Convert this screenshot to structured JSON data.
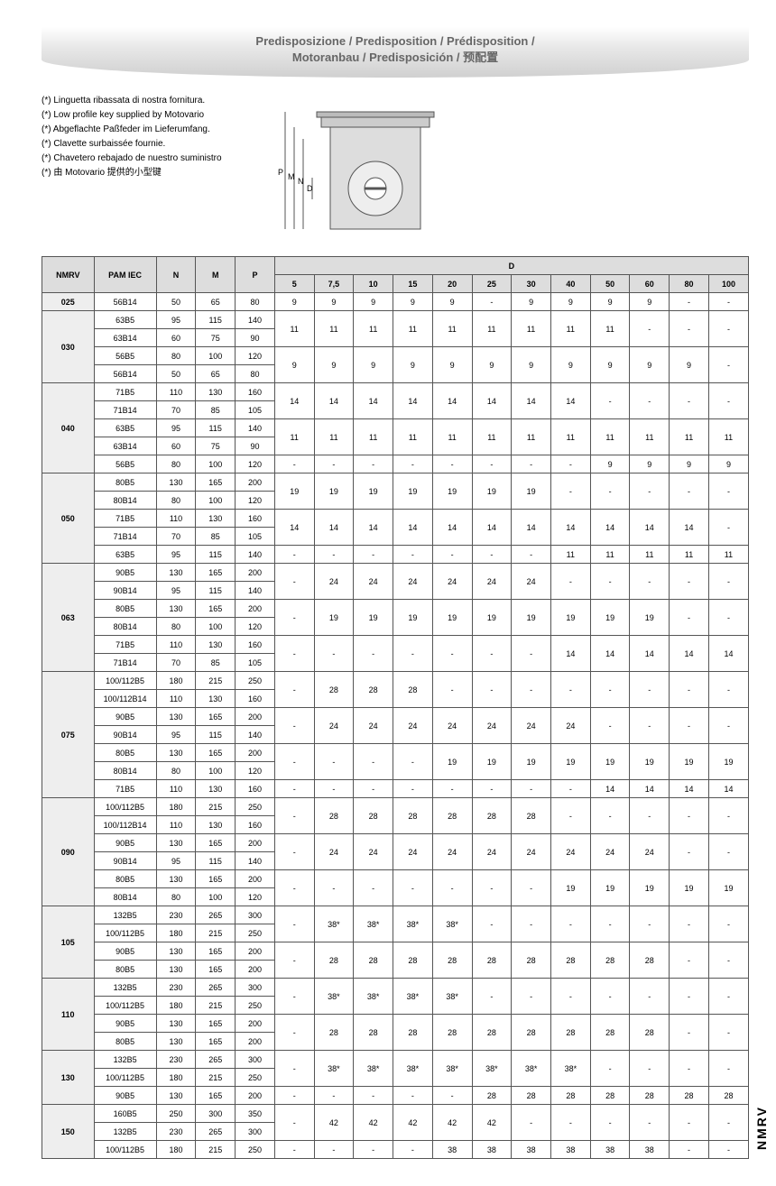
{
  "title_line1": "Predisposizione / Predisposition / Prédisposition /",
  "title_line2": "Motoranbau / Predisposición / 预配置",
  "notes": [
    "(*) Linguetta ribassata di nostra fornitura.",
    "(*) Low profile key supplied by Motovario",
    "(*) Abgeflachte Paßfeder im Lieferumfang.",
    "(*) Clavette surbaissée fournie.",
    "(*) Chavetero rebajado de nuestro suministro",
    "(*) 由 Motovario 提供的小型键"
  ],
  "side_label": "NMRV",
  "headers": {
    "nmrv": "NMRV",
    "pam": "PAM IEC",
    "n": "N",
    "m": "M",
    "p": "P",
    "d": "D",
    "d_cols": [
      "5",
      "7,5",
      "10",
      "15",
      "20",
      "25",
      "30",
      "40",
      "50",
      "60",
      "80",
      "100"
    ]
  },
  "groups": [
    {
      "nmrv": "025",
      "rows": [
        {
          "pam": "56B14",
          "n": "50",
          "m": "65",
          "p": "80"
        }
      ],
      "dvals": [
        [
          "9",
          "9",
          "9",
          "9",
          "9",
          "-",
          "9",
          "9",
          "9",
          "9",
          "-",
          "-"
        ]
      ]
    },
    {
      "nmrv": "030",
      "rows": [
        {
          "pam": "63B5",
          "n": "95",
          "m": "115",
          "p": "140"
        },
        {
          "pam": "63B14",
          "n": "60",
          "m": "75",
          "p": "90"
        },
        {
          "pam": "56B5",
          "n": "80",
          "m": "100",
          "p": "120"
        },
        {
          "pam": "56B14",
          "n": "50",
          "m": "65",
          "p": "80"
        }
      ],
      "dvals": [
        [
          "11",
          "11",
          "11",
          "11",
          "11",
          "11",
          "11",
          "11",
          "11",
          "-",
          "-",
          "-"
        ],
        [
          "9",
          "9",
          "9",
          "9",
          "9",
          "9",
          "9",
          "9",
          "9",
          "9",
          "9",
          "-"
        ]
      ]
    },
    {
      "nmrv": "040",
      "rows": [
        {
          "pam": "71B5",
          "n": "110",
          "m": "130",
          "p": "160"
        },
        {
          "pam": "71B14",
          "n": "70",
          "m": "85",
          "p": "105"
        },
        {
          "pam": "63B5",
          "n": "95",
          "m": "115",
          "p": "140"
        },
        {
          "pam": "63B14",
          "n": "60",
          "m": "75",
          "p": "90"
        },
        {
          "pam": "56B5",
          "n": "80",
          "m": "100",
          "p": "120"
        }
      ],
      "dvals": [
        [
          "14",
          "14",
          "14",
          "14",
          "14",
          "14",
          "14",
          "14",
          "-",
          "-",
          "-",
          "-"
        ],
        [
          "11",
          "11",
          "11",
          "11",
          "11",
          "11",
          "11",
          "11",
          "11",
          "11",
          "11",
          "11"
        ],
        [
          "-",
          "-",
          "-",
          "-",
          "-",
          "-",
          "-",
          "-",
          "9",
          "9",
          "9",
          "9"
        ]
      ]
    },
    {
      "nmrv": "050",
      "rows": [
        {
          "pam": "80B5",
          "n": "130",
          "m": "165",
          "p": "200"
        },
        {
          "pam": "80B14",
          "n": "80",
          "m": "100",
          "p": "120"
        },
        {
          "pam": "71B5",
          "n": "110",
          "m": "130",
          "p": "160"
        },
        {
          "pam": "71B14",
          "n": "70",
          "m": "85",
          "p": "105"
        },
        {
          "pam": "63B5",
          "n": "95",
          "m": "115",
          "p": "140"
        }
      ],
      "dvals": [
        [
          "19",
          "19",
          "19",
          "19",
          "19",
          "19",
          "19",
          "-",
          "-",
          "-",
          "-",
          "-"
        ],
        [
          "14",
          "14",
          "14",
          "14",
          "14",
          "14",
          "14",
          "14",
          "14",
          "14",
          "14",
          "-"
        ],
        [
          "-",
          "-",
          "-",
          "-",
          "-",
          "-",
          "-",
          "11",
          "11",
          "11",
          "11",
          "11"
        ]
      ]
    },
    {
      "nmrv": "063",
      "rows": [
        {
          "pam": "90B5",
          "n": "130",
          "m": "165",
          "p": "200"
        },
        {
          "pam": "90B14",
          "n": "95",
          "m": "115",
          "p": "140"
        },
        {
          "pam": "80B5",
          "n": "130",
          "m": "165",
          "p": "200"
        },
        {
          "pam": "80B14",
          "n": "80",
          "m": "100",
          "p": "120"
        },
        {
          "pam": "71B5",
          "n": "110",
          "m": "130",
          "p": "160"
        },
        {
          "pam": "71B14",
          "n": "70",
          "m": "85",
          "p": "105"
        }
      ],
      "dvals": [
        [
          "-",
          "24",
          "24",
          "24",
          "24",
          "24",
          "24",
          "-",
          "-",
          "-",
          "-",
          "-"
        ],
        [
          "-",
          "19",
          "19",
          "19",
          "19",
          "19",
          "19",
          "19",
          "19",
          "19",
          "-",
          "-"
        ],
        [
          "-",
          "-",
          "-",
          "-",
          "-",
          "-",
          "-",
          "14",
          "14",
          "14",
          "14",
          "14"
        ]
      ]
    },
    {
      "nmrv": "075",
      "rows": [
        {
          "pam": "100/112B5",
          "n": "180",
          "m": "215",
          "p": "250"
        },
        {
          "pam": "100/112B14",
          "n": "110",
          "m": "130",
          "p": "160"
        },
        {
          "pam": "90B5",
          "n": "130",
          "m": "165",
          "p": "200"
        },
        {
          "pam": "90B14",
          "n": "95",
          "m": "115",
          "p": "140"
        },
        {
          "pam": "80B5",
          "n": "130",
          "m": "165",
          "p": "200"
        },
        {
          "pam": "80B14",
          "n": "80",
          "m": "100",
          "p": "120"
        },
        {
          "pam": "71B5",
          "n": "110",
          "m": "130",
          "p": "160"
        }
      ],
      "dvals": [
        [
          "-",
          "28",
          "28",
          "28",
          "-",
          "-",
          "-",
          "-",
          "-",
          "-",
          "-",
          "-"
        ],
        [
          "-",
          "24",
          "24",
          "24",
          "24",
          "24",
          "24",
          "24",
          "-",
          "-",
          "-",
          "-"
        ],
        [
          "-",
          "-",
          "-",
          "-",
          "19",
          "19",
          "19",
          "19",
          "19",
          "19",
          "19",
          "19"
        ],
        [
          "-",
          "-",
          "-",
          "-",
          "-",
          "-",
          "-",
          "-",
          "14",
          "14",
          "14",
          "14"
        ]
      ]
    },
    {
      "nmrv": "090",
      "rows": [
        {
          "pam": "100/112B5",
          "n": "180",
          "m": "215",
          "p": "250"
        },
        {
          "pam": "100/112B14",
          "n": "110",
          "m": "130",
          "p": "160"
        },
        {
          "pam": "90B5",
          "n": "130",
          "m": "165",
          "p": "200"
        },
        {
          "pam": "90B14",
          "n": "95",
          "m": "115",
          "p": "140"
        },
        {
          "pam": "80B5",
          "n": "130",
          "m": "165",
          "p": "200"
        },
        {
          "pam": "80B14",
          "n": "80",
          "m": "100",
          "p": "120"
        }
      ],
      "dvals": [
        [
          "-",
          "28",
          "28",
          "28",
          "28",
          "28",
          "28",
          "-",
          "-",
          "-",
          "-",
          "-"
        ],
        [
          "-",
          "24",
          "24",
          "24",
          "24",
          "24",
          "24",
          "24",
          "24",
          "24",
          "-",
          "-"
        ],
        [
          "-",
          "-",
          "-",
          "-",
          "-",
          "-",
          "-",
          "19",
          "19",
          "19",
          "19",
          "19"
        ]
      ]
    },
    {
      "nmrv": "105",
      "rows": [
        {
          "pam": "132B5",
          "n": "230",
          "m": "265",
          "p": "300"
        },
        {
          "pam": "100/112B5",
          "n": "180",
          "m": "215",
          "p": "250"
        },
        {
          "pam": "90B5",
          "n": "130",
          "m": "165",
          "p": "200"
        },
        {
          "pam": "80B5",
          "n": "130",
          "m": "165",
          "p": "200"
        }
      ],
      "dvals": [
        [
          "-",
          "38*",
          "38*",
          "38*",
          "38*",
          "-",
          "-",
          "-",
          "-",
          "-",
          "-",
          "-"
        ],
        [
          "-",
          "28",
          "28",
          "28",
          "28",
          "28",
          "28",
          "28",
          "28",
          "28",
          "-",
          "-"
        ],
        [
          "-",
          "-",
          "-",
          "-",
          "-",
          "24",
          "24",
          "24",
          "24",
          "24",
          "24",
          "24"
        ],
        [
          "-",
          "-",
          "-",
          "-",
          "-",
          "-",
          "-",
          "-",
          "-",
          "-",
          "19",
          "19"
        ]
      ]
    },
    {
      "nmrv": "110",
      "rows": [
        {
          "pam": "132B5",
          "n": "230",
          "m": "265",
          "p": "300"
        },
        {
          "pam": "100/112B5",
          "n": "180",
          "m": "215",
          "p": "250"
        },
        {
          "pam": "90B5",
          "n": "130",
          "m": "165",
          "p": "200"
        },
        {
          "pam": "80B5",
          "n": "130",
          "m": "165",
          "p": "200"
        }
      ],
      "dvals": [
        [
          "-",
          "38*",
          "38*",
          "38*",
          "38*",
          "-",
          "-",
          "-",
          "-",
          "-",
          "-",
          "-"
        ],
        [
          "-",
          "28",
          "28",
          "28",
          "28",
          "28",
          "28",
          "28",
          "28",
          "28",
          "-",
          "-"
        ],
        [
          "-",
          "-",
          "-",
          "-",
          "-",
          "24",
          "24",
          "24",
          "24",
          "24",
          "24",
          "24"
        ],
        [
          "-",
          "-",
          "-",
          "-",
          "-",
          "-",
          "-",
          "-",
          "-",
          "-",
          "19",
          "19"
        ]
      ]
    },
    {
      "nmrv": "130",
      "rows": [
        {
          "pam": "132B5",
          "n": "230",
          "m": "265",
          "p": "300"
        },
        {
          "pam": "100/112B5",
          "n": "180",
          "m": "215",
          "p": "250"
        },
        {
          "pam": "90B5",
          "n": "130",
          "m": "165",
          "p": "200"
        }
      ],
      "dvals": [
        [
          "-",
          "38*",
          "38*",
          "38*",
          "38*",
          "38*",
          "38*",
          "38*",
          "-",
          "-",
          "-",
          "-"
        ],
        [
          "-",
          "-",
          "-",
          "-",
          "-",
          "28",
          "28",
          "28",
          "28",
          "28",
          "28",
          "28"
        ],
        [
          "-",
          "-",
          "-",
          "-",
          "-",
          "-",
          "-",
          "-",
          "-",
          "-",
          "24",
          "24"
        ]
      ]
    },
    {
      "nmrv": "150",
      "rows": [
        {
          "pam": "160B5",
          "n": "250",
          "m": "300",
          "p": "350"
        },
        {
          "pam": "132B5",
          "n": "230",
          "m": "265",
          "p": "300"
        },
        {
          "pam": "100/112B5",
          "n": "180",
          "m": "215",
          "p": "250"
        }
      ],
      "dvals": [
        [
          "-",
          "42",
          "42",
          "42",
          "42",
          "42",
          "-",
          "-",
          "-",
          "-",
          "-",
          "-"
        ],
        [
          "-",
          "-",
          "-",
          "-",
          "38",
          "38",
          "38",
          "38",
          "38",
          "38",
          "-",
          "-"
        ],
        [
          "-",
          "-",
          "-",
          "-",
          "-",
          "-",
          "-",
          "28",
          "28",
          "28",
          "28",
          "28"
        ]
      ]
    }
  ]
}
